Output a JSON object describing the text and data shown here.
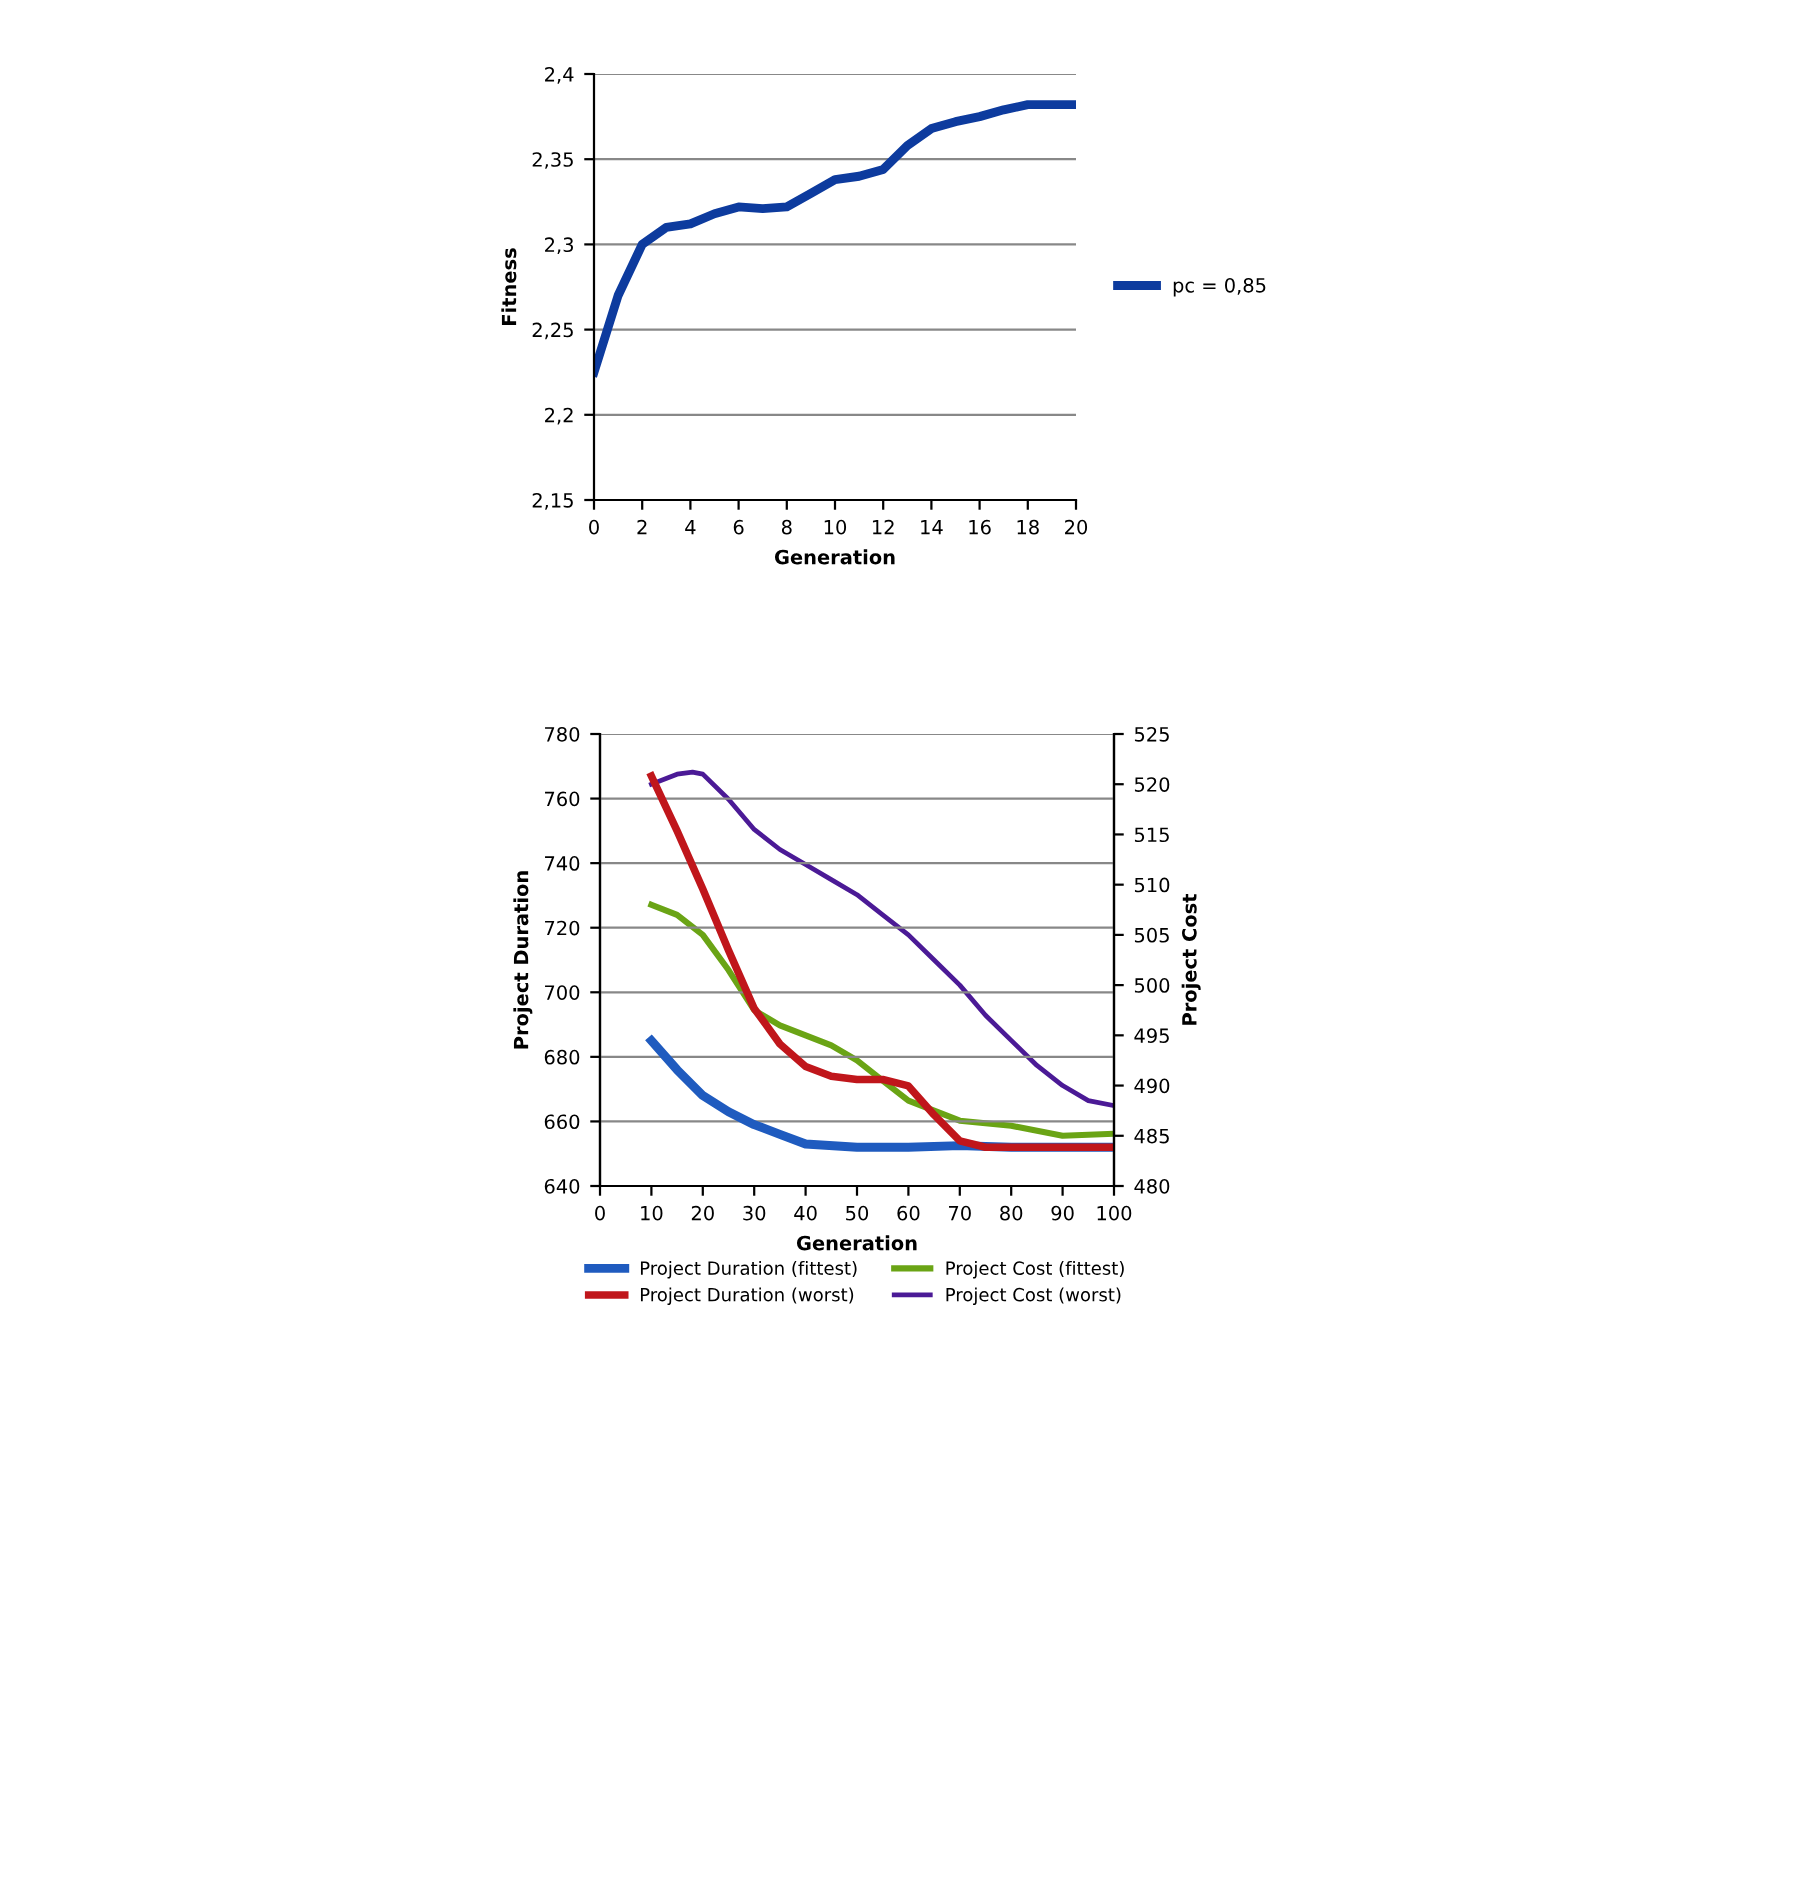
{
  "chart_data": [
    {
      "type": "line",
      "xlabel": "Generation",
      "ylabel": "Fitness",
      "legend": "right",
      "grid": "y",
      "x": [
        0,
        1,
        2,
        3,
        4,
        5,
        6,
        7,
        8,
        9,
        10,
        11,
        12,
        13,
        14,
        15,
        16,
        17,
        18,
        19,
        20
      ],
      "series": [
        {
          "name": "pc = 0,85",
          "color": "#0d3b9e",
          "values": [
            2.225,
            2.27,
            2.3,
            2.31,
            2.312,
            2.318,
            2.322,
            2.321,
            2.322,
            2.33,
            2.338,
            2.34,
            2.344,
            2.358,
            2.368,
            2.372,
            2.375,
            2.379,
            2.382,
            2.382,
            2.382
          ]
        }
      ],
      "xlim": [
        0,
        20
      ],
      "xticks": [
        0,
        2,
        4,
        6,
        8,
        10,
        12,
        14,
        16,
        18,
        20
      ],
      "ylim": [
        2.15,
        2.4
      ],
      "yticks": [
        {
          "value": 2.15,
          "label": "2,15"
        },
        {
          "value": 2.2,
          "label": "2,2"
        },
        {
          "value": 2.25,
          "label": "2,25"
        },
        {
          "value": 2.3,
          "label": "2,3"
        },
        {
          "value": 2.35,
          "label": "2,35"
        },
        {
          "value": 2.4,
          "label": "2,4"
        }
      ]
    },
    {
      "type": "line",
      "xlabel": "Generation",
      "ylabel": "Project Duration",
      "y2label": "Project Cost",
      "legend": "bottom",
      "grid": "y",
      "xlim": [
        0,
        100
      ],
      "xticks": [
        0,
        10,
        20,
        30,
        40,
        50,
        60,
        70,
        80,
        90,
        100
      ],
      "ylim": [
        640,
        780
      ],
      "yticks": [
        640,
        660,
        680,
        700,
        720,
        740,
        760,
        780
      ],
      "y2lim": [
        480,
        525
      ],
      "y2ticks": [
        480,
        485,
        490,
        495,
        500,
        505,
        510,
        515,
        520,
        525
      ],
      "series": [
        {
          "name": "Project Duration (fittest)",
          "color": "#1f5bbf",
          "x": [
            10,
            15,
            20,
            25,
            30,
            35,
            40,
            50,
            60,
            70,
            80,
            90,
            100
          ],
          "values": [
            685,
            676,
            668,
            663,
            659,
            656,
            653,
            652,
            652,
            652.5,
            652,
            652,
            652
          ]
        },
        {
          "name": "Project Duration (worst)",
          "color": "#c0161b",
          "x": [
            10,
            15,
            20,
            25,
            30,
            35,
            40,
            45,
            50,
            55,
            60,
            65,
            70,
            75,
            80,
            100
          ],
          "values": [
            767,
            750,
            732,
            713,
            695,
            684,
            677,
            674,
            673,
            673,
            671,
            662,
            654,
            652,
            652,
            652
          ]
        },
        {
          "name": "Project Cost (fittest)",
          "color": "#6aa415",
          "axis": "y2",
          "x": [
            10,
            15,
            20,
            25,
            30,
            35,
            40,
            45,
            50,
            55,
            60,
            65,
            70,
            80,
            90,
            100
          ],
          "values": [
            508,
            507,
            505,
            501.5,
            497.5,
            496,
            495,
            494,
            492.5,
            490.5,
            488.5,
            487.5,
            486.5,
            486,
            485,
            485.2
          ]
        },
        {
          "name": "Project Cost (worst)",
          "color": "#4b1a96",
          "axis": "y2",
          "x": [
            10,
            15,
            18,
            20,
            25,
            30,
            35,
            40,
            45,
            50,
            55,
            60,
            65,
            70,
            75,
            80,
            85,
            90,
            95,
            100
          ],
          "values": [
            520,
            521,
            521.2,
            521,
            518.5,
            515.5,
            513.5,
            512,
            510.5,
            509,
            507,
            505,
            502.5,
            500,
            497,
            494.5,
            492,
            490,
            488.5,
            488
          ]
        }
      ]
    }
  ]
}
